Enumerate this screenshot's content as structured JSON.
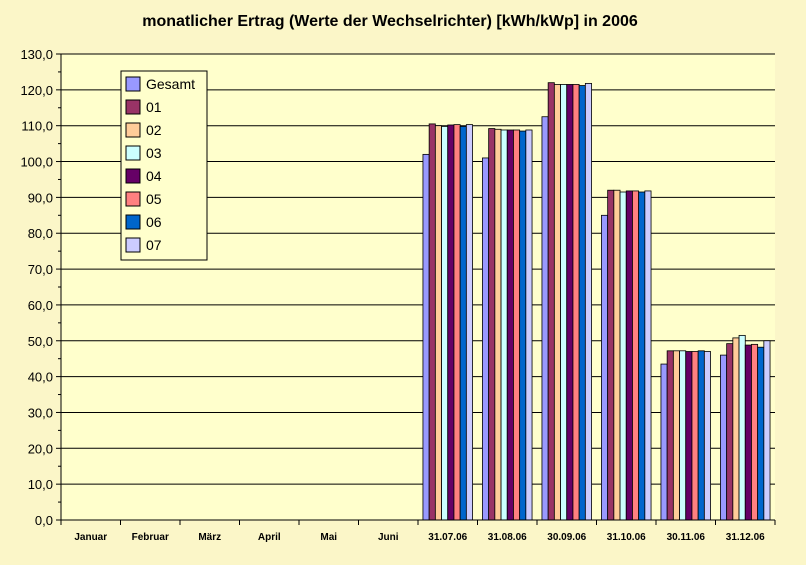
{
  "chart_data": {
    "type": "bar",
    "title": "monatlicher Ertrag (Werte der Wechselrichter) [kWh/kWp] in 2006",
    "xlabel": "",
    "ylabel": "",
    "ylim": [
      0,
      130
    ],
    "y_tick_step": 10,
    "y_tick_labels": [
      "0,0",
      "10,0",
      "20,0",
      "30,0",
      "40,0",
      "50,0",
      "60,0",
      "70,0",
      "80,0",
      "90,0",
      "100,0",
      "110,0",
      "120,0",
      "130,0"
    ],
    "grid": true,
    "legend_position": "top-left",
    "categories": [
      "Januar",
      "Februar",
      "März",
      "April",
      "Mai",
      "Juni",
      "31.07.06",
      "31.08.06",
      "30.09.06",
      "31.10.06",
      "30.11.06",
      "31.12.06"
    ],
    "series": [
      {
        "name": "Gesamt",
        "color": "#9999ff",
        "values": [
          null,
          null,
          null,
          null,
          null,
          null,
          102.0,
          101.0,
          112.5,
          85.0,
          43.5,
          46.0
        ]
      },
      {
        "name": "01",
        "color": "#993366",
        "values": [
          null,
          null,
          null,
          null,
          null,
          null,
          110.5,
          109.2,
          122.0,
          92.0,
          47.2,
          49.2
        ]
      },
      {
        "name": "02",
        "color": "#ffcc99",
        "values": [
          null,
          null,
          null,
          null,
          null,
          null,
          110.0,
          109.0,
          121.5,
          92.0,
          47.2,
          50.8
        ]
      },
      {
        "name": "03",
        "color": "#ccffff",
        "values": [
          null,
          null,
          null,
          null,
          null,
          null,
          109.8,
          108.8,
          121.5,
          91.5,
          47.2,
          51.5
        ]
      },
      {
        "name": "04",
        "color": "#660066",
        "values": [
          null,
          null,
          null,
          null,
          null,
          null,
          110.2,
          108.8,
          121.5,
          91.8,
          47.0,
          48.8
        ]
      },
      {
        "name": "05",
        "color": "#ff8080",
        "values": [
          null,
          null,
          null,
          null,
          null,
          null,
          110.3,
          108.8,
          121.5,
          91.8,
          47.0,
          49.0
        ]
      },
      {
        "name": "06",
        "color": "#0066cc",
        "values": [
          null,
          null,
          null,
          null,
          null,
          null,
          109.8,
          108.5,
          121.2,
          91.5,
          47.2,
          48.2
        ]
      },
      {
        "name": "07",
        "color": "#ccccff",
        "values": [
          null,
          null,
          null,
          null,
          null,
          null,
          110.3,
          108.8,
          121.8,
          91.8,
          47.0,
          50.0
        ]
      }
    ]
  },
  "colors": {
    "background": "#fbf6c8",
    "plot_area": "#ffffcc",
    "grid": "#000000"
  }
}
